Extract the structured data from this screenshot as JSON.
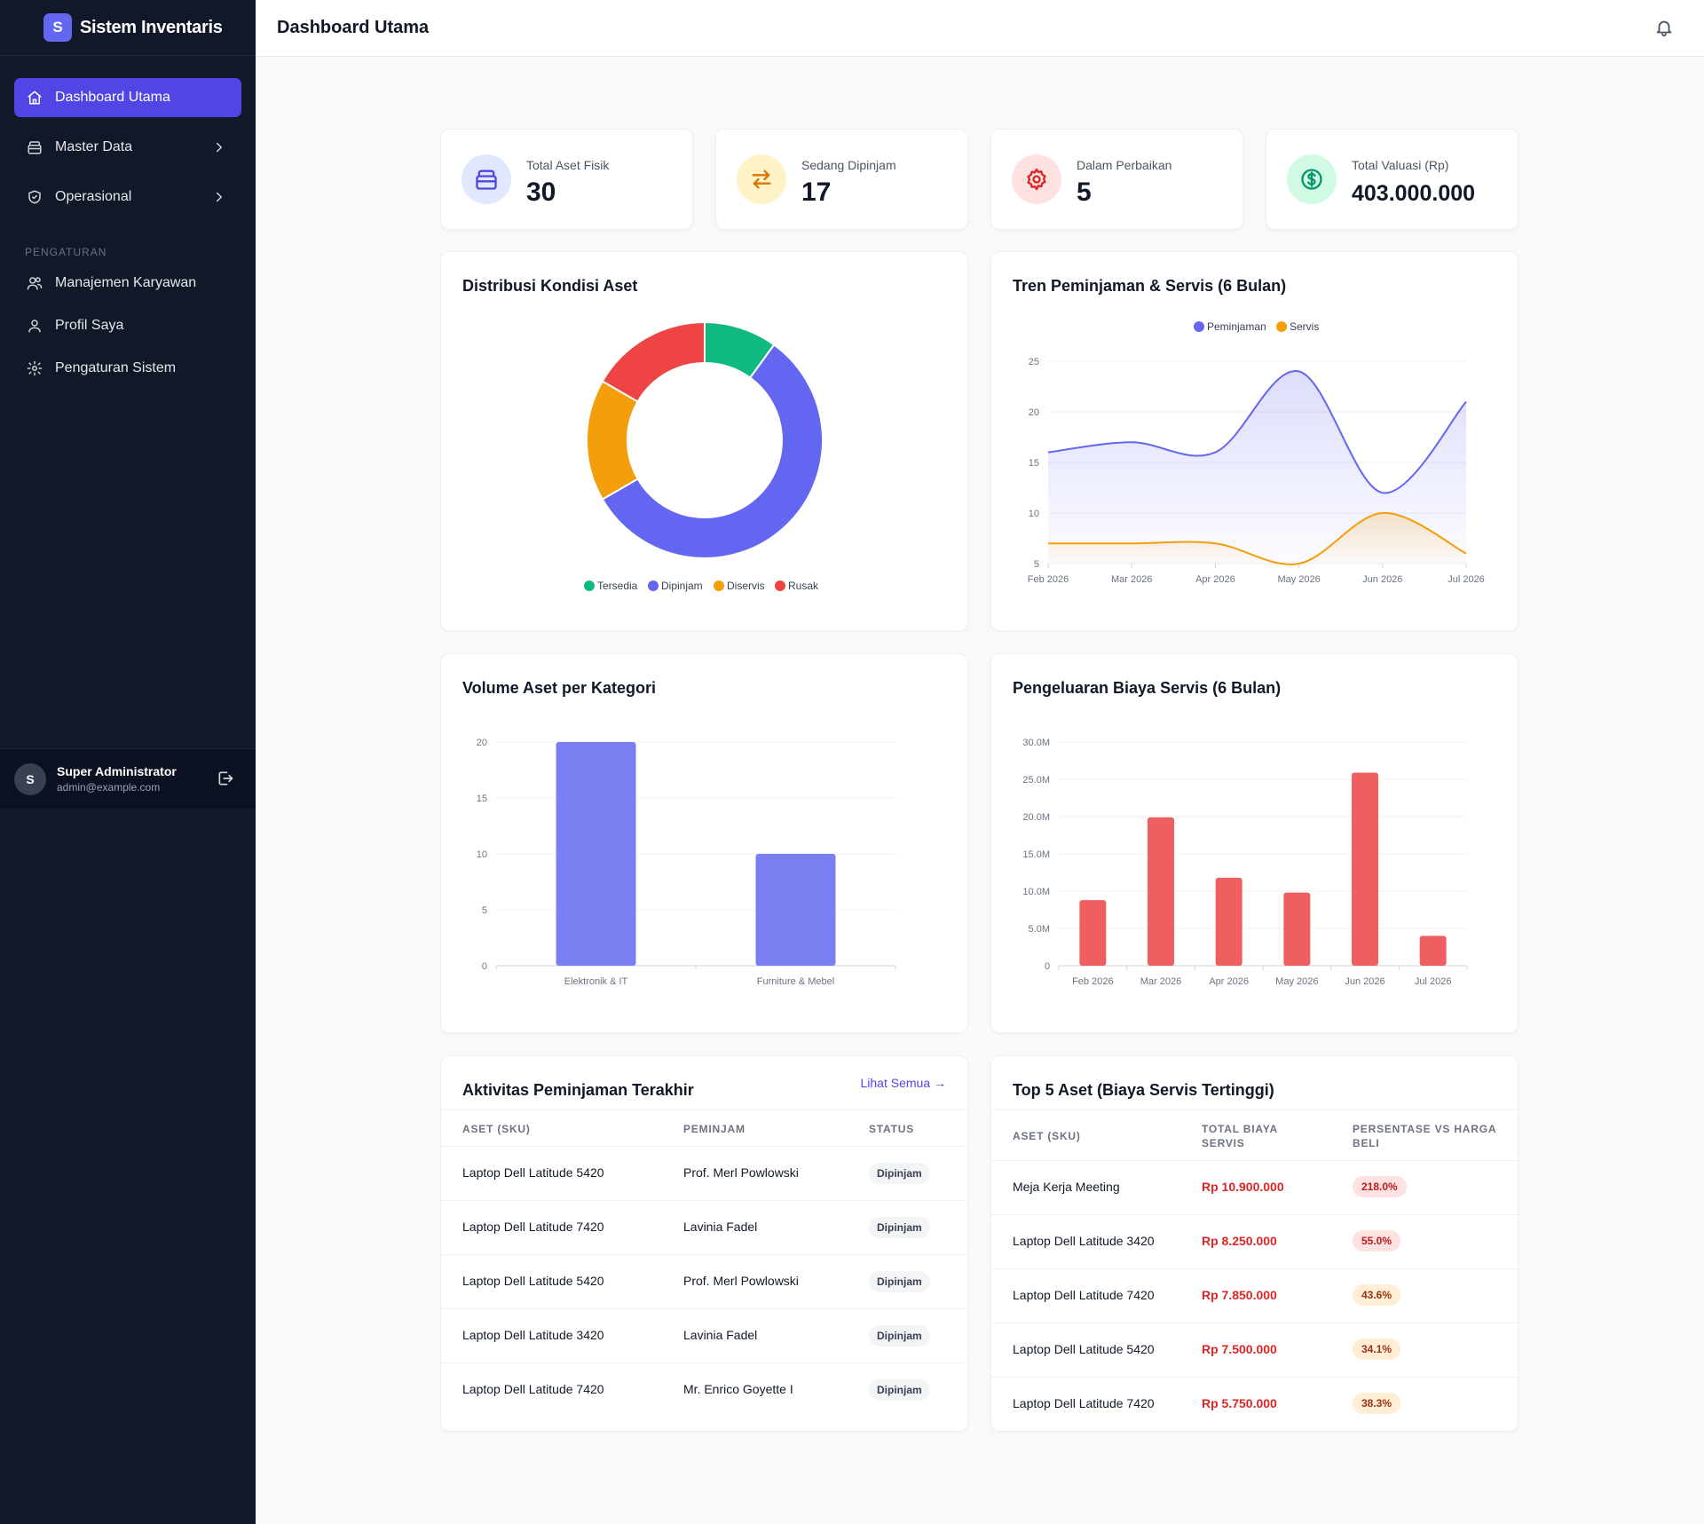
{
  "app": {
    "logo_letter": "S",
    "name": "Sistem Inventaris"
  },
  "header": {
    "title": "Dashboard Utama"
  },
  "sidebar": {
    "items": [
      {
        "label": "Dashboard Utama"
      },
      {
        "label": "Master Data"
      },
      {
        "label": "Operasional"
      }
    ],
    "section": "PENGATURAN",
    "settings_items": [
      {
        "label": "Manajemen Karyawan"
      },
      {
        "label": "Profil Saya"
      },
      {
        "label": "Pengaturan Sistem"
      }
    ],
    "user": {
      "initial": "S",
      "name": "Super Administrator",
      "email": "admin@example.com"
    }
  },
  "stats": [
    {
      "label": "Total Aset Fisik",
      "value": "30",
      "color": "#4f46e5",
      "bg": "#e0e7ff",
      "icon": "archive-icon"
    },
    {
      "label": "Sedang Dipinjam",
      "value": "17",
      "color": "#d97706",
      "bg": "#fef3c7",
      "icon": "arrows-exchange-icon"
    },
    {
      "label": "Dalam Perbaikan",
      "value": "5",
      "color": "#dc2626",
      "bg": "#fee2e2",
      "icon": "gear-icon"
    },
    {
      "label": "Total Valuasi (Rp)",
      "value": "403.000.000",
      "color": "#059669",
      "bg": "#d1fae5",
      "icon": "dollar-icon"
    }
  ],
  "cards": {
    "donut_title": "Distribusi Kondisi Aset",
    "line_title": "Tren Peminjaman & Servis (6 Bulan)",
    "bar1_title": "Volume Aset per Kategori",
    "bar2_title": "Pengeluaran Biaya Servis (6 Bulan)"
  },
  "chart_data": [
    {
      "type": "pie",
      "title": "Distribusi Kondisi Aset",
      "categories": [
        "Tersedia",
        "Dipinjam",
        "Diservis",
        "Rusak"
      ],
      "values": [
        3,
        17,
        5,
        5
      ],
      "colors": [
        "#10b981",
        "#6366f1",
        "#f59e0b",
        "#ef4444"
      ],
      "legend": "bottom"
    },
    {
      "type": "line",
      "title": "Tren Peminjaman & Servis (6 Bulan)",
      "x": [
        "Feb 2026",
        "Mar 2026",
        "Apr 2026",
        "May 2026",
        "Jun 2026",
        "Jul 2026"
      ],
      "ylim": [
        5,
        25
      ],
      "yticks": [
        5,
        10,
        15,
        20,
        25
      ],
      "series": [
        {
          "name": "Peminjaman",
          "values": [
            16,
            17,
            16,
            24,
            12,
            21
          ],
          "color": "#6366f1"
        },
        {
          "name": "Servis",
          "values": [
            7,
            7,
            7,
            5,
            10,
            6
          ],
          "color": "#f59e0b"
        }
      ],
      "legend": "top",
      "grid": true
    },
    {
      "type": "bar",
      "title": "Volume Aset per Kategori",
      "categories": [
        "Elektronik & IT",
        "Furniture & Mebel"
      ],
      "values": [
        20,
        10
      ],
      "ylim": [
        0,
        20
      ],
      "yticks": [
        "0",
        "5",
        "10",
        "15",
        "20"
      ],
      "color": "#7c7ff2",
      "grid": true
    },
    {
      "type": "bar",
      "title": "Pengeluaran Biaya Servis (6 Bulan)",
      "categories": [
        "Feb 2026",
        "Mar 2026",
        "Apr 2026",
        "May 2026",
        "Jun 2026",
        "Jul 2026"
      ],
      "values": [
        8800000,
        19900000,
        11800000,
        9800000,
        25900000,
        4000000
      ],
      "ylim": [
        0,
        30000000
      ],
      "yticks": [
        "0",
        "5.0M",
        "10.0M",
        "15.0M",
        "20.0M",
        "25.0M",
        "30.0M"
      ],
      "color": "#ef5f61",
      "grid": true
    }
  ],
  "loans": {
    "title": "Aktivitas Peminjaman Terakhir",
    "link": "Lihat Semua →",
    "headers": [
      "ASET (SKU)",
      "PEMINJAM",
      "STATUS"
    ],
    "rows": [
      {
        "asset": "Laptop Dell Latitude 5420",
        "borrower": "Prof. Merl Powlowski",
        "status": "Dipinjam"
      },
      {
        "asset": "Laptop Dell Latitude 7420",
        "borrower": "Lavinia Fadel",
        "status": "Dipinjam"
      },
      {
        "asset": "Laptop Dell Latitude 5420",
        "borrower": "Prof. Merl Powlowski",
        "status": "Dipinjam"
      },
      {
        "asset": "Laptop Dell Latitude 3420",
        "borrower": "Lavinia Fadel",
        "status": "Dipinjam"
      },
      {
        "asset": "Laptop Dell Latitude 7420",
        "borrower": "Mr. Enrico Goyette I",
        "status": "Dipinjam"
      }
    ]
  },
  "top5": {
    "title": "Top 5 Aset (Biaya Servis Tertinggi)",
    "headers": [
      "ASET (SKU)",
      "TOTAL BIAYA SERVIS",
      "PERSENTASE VS HARGA BELI"
    ],
    "rows": [
      {
        "asset": "Meja Kerja Meeting",
        "cost": "Rp 10.900.000",
        "pct": "218.0%",
        "pct_bg": "#fee2e2",
        "pct_color": "#b91c1c"
      },
      {
        "asset": "Laptop Dell Latitude 3420",
        "cost": "Rp 8.250.000",
        "pct": "55.0%",
        "pct_bg": "#fee2e2",
        "pct_color": "#b91c1c"
      },
      {
        "asset": "Laptop Dell Latitude 7420",
        "cost": "Rp 7.850.000",
        "pct": "43.6%",
        "pct_bg": "#ffedd5",
        "pct_color": "#9a3412"
      },
      {
        "asset": "Laptop Dell Latitude 5420",
        "cost": "Rp 7.500.000",
        "pct": "34.1%",
        "pct_bg": "#ffedd5",
        "pct_color": "#9a3412"
      },
      {
        "asset": "Laptop Dell Latitude 7420",
        "cost": "Rp 5.750.000",
        "pct": "38.3%",
        "pct_bg": "#ffedd5",
        "pct_color": "#9a3412"
      }
    ]
  }
}
